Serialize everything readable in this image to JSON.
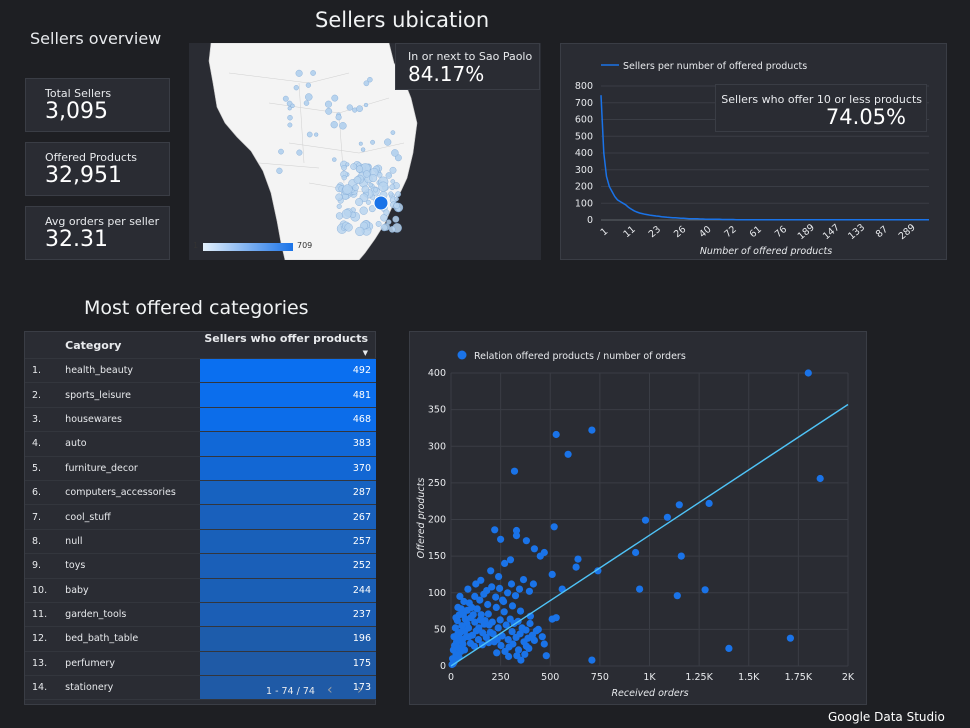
{
  "dashboard": {
    "overview_title": "Sellers overview",
    "map_title": "Sellers ubication",
    "categories_title": "Most offered categories",
    "footer_brand": "Google Data Studio"
  },
  "kpis": [
    {
      "label": "Total Sellers",
      "value": "3,095"
    },
    {
      "label": "Offered Products",
      "value": "32,951"
    },
    {
      "label": "Avg orders per seller",
      "value": "32.31"
    }
  ],
  "map": {
    "callout_label": "In or next to Sao Paolo",
    "callout_value": "84.17%",
    "legend_min": "1",
    "legend_max": "709",
    "colors": {
      "land": "#f4f4f4",
      "water": "#2a2c33",
      "bubble": "#b7d3ee",
      "hot": "#1a73e8"
    }
  },
  "table": {
    "col_category": "Category",
    "col_value": "Sellers who offer products",
    "sort_icon": "caret-down-icon",
    "rows": [
      {
        "rank": "1.",
        "category": "health_beauty",
        "value": "492"
      },
      {
        "rank": "2.",
        "category": "sports_leisure",
        "value": "481"
      },
      {
        "rank": "3.",
        "category": "housewares",
        "value": "468"
      },
      {
        "rank": "4.",
        "category": "auto",
        "value": "383"
      },
      {
        "rank": "5.",
        "category": "furniture_decor",
        "value": "370"
      },
      {
        "rank": "6.",
        "category": "computers_accessories",
        "value": "287"
      },
      {
        "rank": "7.",
        "category": "cool_stuff",
        "value": "267"
      },
      {
        "rank": "8.",
        "category": "null",
        "value": "257"
      },
      {
        "rank": "9.",
        "category": "toys",
        "value": "252"
      },
      {
        "rank": "10.",
        "category": "baby",
        "value": "244"
      },
      {
        "rank": "11.",
        "category": "garden_tools",
        "value": "237"
      },
      {
        "rank": "12.",
        "category": "bed_bath_table",
        "value": "196"
      },
      {
        "rank": "13.",
        "category": "perfumery",
        "value": "175"
      },
      {
        "rank": "14.",
        "category": "stationery",
        "value": "173"
      }
    ],
    "pagination": "1 - 74 / 74",
    "heat_colors": {
      "high": "#0a6ff0",
      "low": "#1f5aa6"
    }
  },
  "chart_data": [
    {
      "type": "line",
      "series": [
        {
          "name": "Sellers per number of offered products",
          "color": "#1a73e8"
        }
      ],
      "callout_label": "Sellers who offer 10 or less products",
      "callout_value": "74.05%",
      "xlabel": "Number of offered products",
      "x_ticks": [
        "1",
        "11",
        "23",
        "26",
        "40",
        "72",
        "61",
        "76",
        "189",
        "147",
        "133",
        "87",
        "289"
      ],
      "y_ticks": [
        "800",
        "700",
        "600",
        "500",
        "400",
        "300",
        "200",
        "100",
        "0"
      ],
      "ylim": [
        0,
        800
      ],
      "values": [
        745,
        400,
        260,
        200,
        170,
        140,
        120,
        110,
        100,
        90,
        75,
        65,
        55,
        48,
        42,
        38,
        34,
        31,
        28,
        26,
        24,
        22,
        20,
        18,
        16,
        15,
        14,
        13,
        12,
        11,
        10,
        9,
        8,
        8,
        7,
        7,
        6,
        6,
        5,
        5,
        5,
        4,
        4,
        4,
        3,
        3,
        3,
        3,
        3,
        2,
        2,
        2,
        2,
        2,
        2,
        2,
        2,
        2,
        2,
        2,
        1,
        1,
        1,
        1,
        1,
        1,
        1,
        1,
        1,
        1,
        1,
        1,
        1,
        1,
        1,
        1,
        1,
        1,
        1,
        1,
        1,
        1,
        1,
        1,
        1,
        1,
        1,
        1,
        1,
        1,
        1,
        1,
        1,
        1,
        1,
        1,
        1,
        1,
        1,
        1,
        1,
        1,
        1,
        1,
        1,
        1,
        1,
        1,
        1,
        1,
        1,
        1,
        1,
        1,
        1,
        1,
        1,
        1,
        1,
        1
      ]
    },
    {
      "type": "scatter",
      "series": [
        {
          "name": "Relation offered products / number of orders",
          "color": "#1a73e8"
        }
      ],
      "trendline_color": "#4fc3f7",
      "trendline": {
        "x": [
          0,
          2000
        ],
        "y": [
          0,
          357
        ]
      },
      "xlabel": "Received orders",
      "ylabel": "Offered products",
      "xlim": [
        0,
        2000
      ],
      "ylim": [
        0,
        400
      ],
      "x_tick_values": [
        0,
        250,
        500,
        750,
        1000,
        1250,
        1500,
        1750,
        2000
      ],
      "x_tick_labels": [
        "0",
        "250",
        "500",
        "750",
        "1K",
        "1.25K",
        "1.5K",
        "1.75K",
        "2K"
      ],
      "y_tick_values": [
        0,
        50,
        100,
        150,
        200,
        250,
        300,
        350,
        400
      ],
      "y_tick_labels": [
        "0",
        "50",
        "100",
        "150",
        "200",
        "250",
        "300",
        "350",
        "400"
      ],
      "points": [
        [
          1800,
          400
        ],
        [
          1860,
          256
        ],
        [
          710,
          322
        ],
        [
          530,
          316
        ],
        [
          590,
          289
        ],
        [
          320,
          266
        ],
        [
          1300,
          222
        ],
        [
          1150,
          220
        ],
        [
          1090,
          203
        ],
        [
          980,
          199
        ],
        [
          1160,
          150
        ],
        [
          930,
          155
        ],
        [
          1140,
          96
        ],
        [
          1280,
          104
        ],
        [
          1710,
          38
        ],
        [
          1400,
          24
        ],
        [
          950,
          105
        ],
        [
          710,
          8
        ],
        [
          740,
          130
        ],
        [
          520,
          190
        ],
        [
          640,
          146
        ],
        [
          630,
          135
        ],
        [
          510,
          125
        ],
        [
          560,
          105
        ],
        [
          510,
          64
        ],
        [
          530,
          66
        ],
        [
          470,
          155
        ],
        [
          450,
          150
        ],
        [
          420,
          160
        ],
        [
          380,
          171
        ],
        [
          330,
          185
        ],
        [
          330,
          178
        ],
        [
          220,
          186
        ],
        [
          250,
          173
        ],
        [
          300,
          145
        ],
        [
          270,
          140
        ],
        [
          200,
          130
        ],
        [
          240,
          122
        ],
        [
          150,
          117
        ],
        [
          180,
          103
        ],
        [
          120,
          95
        ],
        [
          260,
          90
        ],
        [
          310,
          82
        ],
        [
          350,
          75
        ],
        [
          400,
          68
        ],
        [
          440,
          50
        ],
        [
          470,
          30
        ],
        [
          380,
          27
        ],
        [
          340,
          22
        ],
        [
          290,
          13
        ],
        [
          230,
          18
        ],
        [
          190,
          32
        ],
        [
          160,
          45
        ],
        [
          140,
          52
        ],
        [
          120,
          60
        ],
        [
          100,
          66
        ],
        [
          90,
          40
        ],
        [
          80,
          58
        ],
        [
          70,
          48
        ],
        [
          60,
          30
        ],
        [
          55,
          55
        ],
        [
          50,
          20
        ],
        [
          45,
          38
        ],
        [
          40,
          12
        ],
        [
          35,
          44
        ],
        [
          30,
          26
        ],
        [
          25,
          16
        ],
        [
          20,
          8
        ],
        [
          15,
          5
        ],
        [
          10,
          3
        ],
        [
          8,
          10
        ],
        [
          5,
          2
        ],
        [
          18,
          28
        ],
        [
          28,
          33
        ],
        [
          38,
          25
        ],
        [
          48,
          46
        ],
        [
          58,
          36
        ],
        [
          68,
          22
        ],
        [
          78,
          40
        ],
        [
          88,
          52
        ],
        [
          98,
          31
        ],
        [
          108,
          42
        ],
        [
          118,
          27
        ],
        [
          128,
          48
        ],
        [
          138,
          36
        ],
        [
          148,
          63
        ],
        [
          158,
          29
        ],
        [
          168,
          57
        ],
        [
          178,
          39
        ],
        [
          188,
          71
        ],
        [
          198,
          46
        ],
        [
          208,
          60
        ],
        [
          218,
          33
        ],
        [
          228,
          80
        ],
        [
          238,
          52
        ],
        [
          248,
          63
        ],
        [
          258,
          41
        ],
        [
          268,
          74
        ],
        [
          278,
          56
        ],
        [
          288,
          36
        ],
        [
          298,
          64
        ],
        [
          308,
          47
        ],
        [
          318,
          58
        ],
        [
          328,
          39
        ],
        [
          338,
          61
        ],
        [
          348,
          44
        ],
        [
          358,
          52
        ],
        [
          368,
          33
        ],
        [
          378,
          49
        ],
        [
          388,
          38
        ],
        [
          398,
          58
        ],
        [
          410,
          42
        ],
        [
          420,
          35
        ],
        [
          430,
          48
        ],
        [
          460,
          40
        ],
        [
          480,
          14
        ],
        [
          35,
          80
        ],
        [
          45,
          95
        ],
        [
          65,
          88
        ],
        [
          85,
          105
        ],
        [
          105,
          80
        ],
        [
          125,
          112
        ],
        [
          145,
          90
        ],
        [
          165,
          98
        ],
        [
          185,
          84
        ],
        [
          205,
          108
        ],
        [
          225,
          94
        ],
        [
          245,
          106
        ],
        [
          265,
          88
        ],
        [
          285,
          100
        ],
        [
          305,
          112
        ],
        [
          325,
          96
        ],
        [
          345,
          105
        ],
        [
          365,
          118
        ],
        [
          395,
          102
        ],
        [
          415,
          112
        ],
        [
          25,
          66
        ],
        [
          15,
          40
        ],
        [
          12,
          22
        ],
        [
          22,
          52
        ],
        [
          32,
          62
        ],
        [
          42,
          70
        ],
        [
          52,
          78
        ],
        [
          62,
          70
        ],
        [
          72,
          64
        ],
        [
          82,
          76
        ],
        [
          92,
          86
        ],
        [
          112,
          70
        ],
        [
          132,
          78
        ],
        [
          152,
          70
        ],
        [
          172,
          62
        ],
        [
          192,
          56
        ],
        [
          212,
          44
        ],
        [
          232,
          36
        ],
        [
          252,
          28
        ],
        [
          272,
          20
        ],
        [
          292,
          26
        ],
        [
          312,
          30
        ],
        [
          332,
          14
        ],
        [
          352,
          8
        ],
        [
          372,
          16
        ],
        [
          392,
          24
        ]
      ]
    }
  ]
}
